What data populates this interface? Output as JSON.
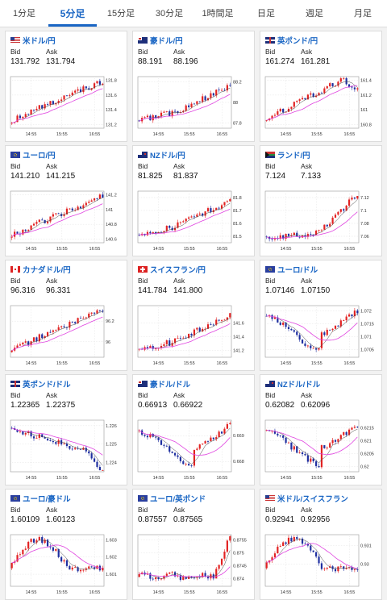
{
  "tabs": [
    {
      "label": "1分足",
      "active": false
    },
    {
      "label": "5分足",
      "active": true
    },
    {
      "label": "15分足",
      "active": false
    },
    {
      "label": "30分足",
      "active": false
    },
    {
      "label": "1時間足",
      "active": false
    },
    {
      "label": "日足",
      "active": false
    },
    {
      "label": "週足",
      "active": false
    },
    {
      "label": "月足",
      "active": false
    }
  ],
  "bid_label": "Bid",
  "ask_label": "Ask",
  "cards": [
    {
      "pair": "米ドル/円",
      "flag": "us-flag",
      "bid": "131.792",
      "ask": "131.794",
      "chart_data": {
        "type": "candlestick",
        "x_ticks": [
          "14:55",
          "15:55",
          "16:55"
        ],
        "y_ticks": [
          "131.8",
          "131.6",
          "131.4",
          "131.2"
        ],
        "ylim": [
          131.15,
          131.85
        ],
        "trend": "up-strong"
      }
    },
    {
      "pair": "豪ドル/円",
      "flag": "au-flag",
      "bid": "88.191",
      "ask": "88.196",
      "chart_data": {
        "type": "candlestick",
        "x_ticks": [
          "14:55",
          "15:55",
          "16:55"
        ],
        "y_ticks": [
          "88.2",
          "88",
          "87.8"
        ],
        "ylim": [
          87.75,
          88.25
        ],
        "trend": "up"
      }
    },
    {
      "pair": "英ポンド/円",
      "flag": "gb-flag",
      "bid": "161.274",
      "ask": "161.281",
      "chart_data": {
        "type": "candlestick",
        "x_ticks": [
          "14:55",
          "15:55",
          "16:55"
        ],
        "y_ticks": [
          "161.4",
          "161.2",
          "161",
          "160.8"
        ],
        "ylim": [
          160.75,
          161.45
        ],
        "trend": "up-peak"
      }
    },
    {
      "pair": "ユーロ/円",
      "flag": "eu-flag",
      "bid": "141.210",
      "ask": "141.215",
      "chart_data": {
        "type": "candlestick",
        "x_ticks": [
          "14:55",
          "15:55",
          "16:55"
        ],
        "y_ticks": [
          "141.2",
          "141",
          "140.8",
          "140.6"
        ],
        "ylim": [
          140.55,
          141.25
        ],
        "trend": "up-strong"
      }
    },
    {
      "pair": "NZドル/円",
      "flag": "nz-flag",
      "bid": "81.825",
      "ask": "81.837",
      "chart_data": {
        "type": "candlestick",
        "x_ticks": [
          "14:55",
          "15:55",
          "16:55"
        ],
        "y_ticks": [
          "81.8",
          "81.7",
          "81.6",
          "81.5"
        ],
        "ylim": [
          81.45,
          81.85
        ],
        "trend": "up"
      }
    },
    {
      "pair": "ランド/円",
      "flag": "za-flag",
      "bid": "7.124",
      "ask": "7.133",
      "chart_data": {
        "type": "candlestick",
        "x_ticks": [
          "14:55",
          "15:55",
          "16:55"
        ],
        "y_ticks": [
          "7.12",
          "7.1",
          "7.08",
          "7.06"
        ],
        "ylim": [
          7.05,
          7.13
        ],
        "trend": "up-late"
      }
    },
    {
      "pair": "カナダドル/円",
      "flag": "ca-flag",
      "bid": "96.316",
      "ask": "96.331",
      "chart_data": {
        "type": "candlestick",
        "x_ticks": [
          "14:55",
          "15:55",
          "16:55"
        ],
        "y_ticks": [
          "96.2",
          "96"
        ],
        "ylim": [
          95.85,
          96.35
        ],
        "trend": "up-strong"
      }
    },
    {
      "pair": "スイスフラン/円",
      "flag": "ch-flag",
      "bid": "141.784",
      "ask": "141.800",
      "chart_data": {
        "type": "candlestick",
        "x_ticks": [
          "14:55",
          "15:55",
          "16:55"
        ],
        "y_ticks": [
          "141.6",
          "141.4",
          "141.2"
        ],
        "ylim": [
          141.1,
          141.85
        ],
        "trend": "up"
      }
    },
    {
      "pair": "ユーロ/ドル",
      "flag": "eu-flag",
      "bid": "1.07146",
      "ask": "1.07150",
      "chart_data": {
        "type": "candlestick",
        "x_ticks": [
          "14:55",
          "15:55",
          "16:55"
        ],
        "y_ticks": [
          "1.072",
          "1.0715",
          "1.071",
          "1.0705"
        ],
        "ylim": [
          1.0702,
          1.0722
        ],
        "trend": "dip-recover"
      }
    },
    {
      "pair": "英ポンド/ドル",
      "flag": "gb-flag",
      "bid": "1.22365",
      "ask": "1.22375",
      "chart_data": {
        "type": "candlestick",
        "x_ticks": [
          "14:55",
          "15:55",
          "16:55"
        ],
        "y_ticks": [
          "1.226",
          "1.225",
          "1.224"
        ],
        "ylim": [
          1.2235,
          1.2263
        ],
        "trend": "down"
      }
    },
    {
      "pair": "豪ドル/ドル",
      "flag": "au-flag",
      "bid": "0.66913",
      "ask": "0.66922",
      "chart_data": {
        "type": "candlestick",
        "x_ticks": [
          "14:55",
          "15:55",
          "16:55"
        ],
        "y_ticks": [
          "0.669",
          "0.668"
        ],
        "ylim": [
          0.6676,
          0.6696
        ],
        "trend": "dip-recover"
      }
    },
    {
      "pair": "NZドル/ドル",
      "flag": "nz-flag",
      "bid": "0.62082",
      "ask": "0.62096",
      "chart_data": {
        "type": "candlestick",
        "x_ticks": [
          "14:55",
          "15:55",
          "16:55"
        ],
        "y_ticks": [
          "0.6215",
          "0.621",
          "0.6205",
          "0.62"
        ],
        "ylim": [
          0.6198,
          0.6218
        ],
        "trend": "dip-recover"
      }
    },
    {
      "pair": "ユーロ/豪ドル",
      "flag": "eu-flag",
      "bid": "1.60109",
      "ask": "1.60123",
      "chart_data": {
        "type": "candlestick",
        "x_ticks": [
          "14:55",
          "15:55",
          "16:55"
        ],
        "y_ticks": [
          "1.603",
          "1.602",
          "1.601"
        ],
        "ylim": [
          1.6003,
          1.6033
        ],
        "trend": "hump-down"
      }
    },
    {
      "pair": "ユーロ/英ポンド",
      "flag": "eu-flag",
      "bid": "0.87557",
      "ask": "0.87565",
      "chart_data": {
        "type": "candlestick",
        "x_ticks": [
          "14:55",
          "15:55",
          "16:55"
        ],
        "y_ticks": [
          "0.8755",
          "0.875",
          "0.8745",
          "0.874"
        ],
        "ylim": [
          0.8737,
          0.8757
        ],
        "trend": "flat-spike"
      }
    },
    {
      "pair": "米ドル/スイスフラン",
      "flag": "us-flag",
      "bid": "0.92941",
      "ask": "0.92956",
      "chart_data": {
        "type": "candlestick",
        "x_ticks": [
          "14:55",
          "15:55",
          "16:55"
        ],
        "y_ticks": [
          "0.931",
          "0.93"
        ],
        "ylim": [
          0.9288,
          0.9316
        ],
        "trend": "hump-down"
      }
    }
  ],
  "colors": {
    "accent": "#1a66c4",
    "up": "#e22222",
    "down": "#1f2fa0",
    "ma": "#e044e0",
    "ma2": "#444444"
  }
}
